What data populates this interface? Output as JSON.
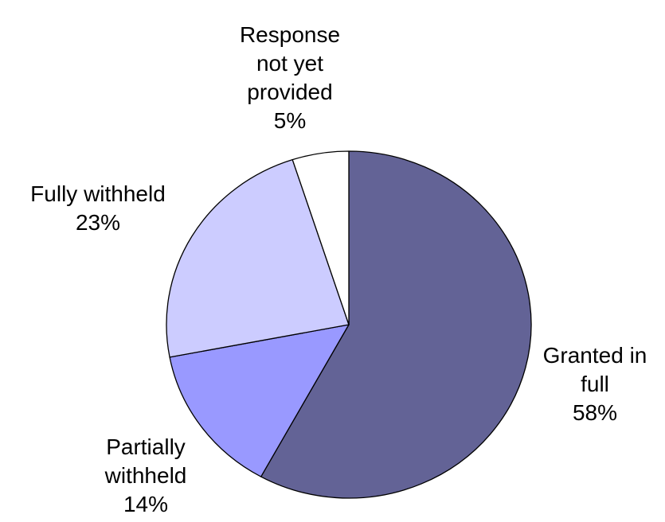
{
  "chart_data": {
    "type": "pie",
    "title": "",
    "slices": [
      {
        "name": "Granted in full",
        "label_lines": [
          "Granted in",
          "full",
          "58%"
        ],
        "value": 58,
        "color": "#636396"
      },
      {
        "name": "Partially withheld",
        "label_lines": [
          "Partially",
          "withheld",
          "14%"
        ],
        "value": 14,
        "color": "#9999ff"
      },
      {
        "name": "Fully withheld",
        "label_lines": [
          "Fully withheld",
          "23%"
        ],
        "value": 23,
        "color": "#ccccff"
      },
      {
        "name": "Response not yet provided",
        "label_lines": [
          "Response",
          "not yet",
          "provided",
          "5%"
        ],
        "value": 5,
        "color": "#ffffff"
      }
    ],
    "start_direction": "12 o'clock",
    "slice_order": "clockwise",
    "legend": "none",
    "data_labels": "outside, category name and percentage"
  }
}
